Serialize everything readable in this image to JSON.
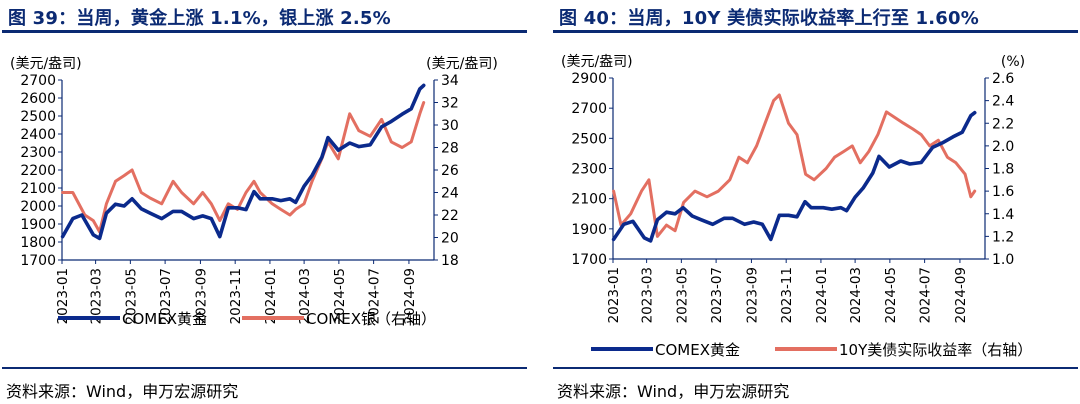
{
  "panels": [
    {
      "title": "图 39：当周，黄金上涨 1.1%，银上涨 2.5%",
      "source": "资料来源：Wind，申万宏源研究"
    },
    {
      "title": "图 40：当周，10Y 美债实际收益率上行至 1.60%",
      "source": "资料来源：Wind，申万宏源研究"
    }
  ],
  "chart_data": [
    {
      "type": "line",
      "left_unit": "(美元/盎司)",
      "right_unit": "(美元/盎司)",
      "x_ticks": [
        "2023-01",
        "2023-03",
        "2023-05",
        "2023-07",
        "2023-09",
        "2023-11",
        "2024-01",
        "2024-03",
        "2024-05",
        "2024-07",
        "2024-09"
      ],
      "ylim_left": [
        1700,
        2700
      ],
      "y_ticks_left": [
        1700,
        1800,
        1900,
        2000,
        2100,
        2200,
        2300,
        2400,
        2500,
        2600,
        2700
      ],
      "ylim_right": [
        18,
        34
      ],
      "y_ticks_right": [
        18,
        20,
        22,
        24,
        26,
        28,
        30,
        32,
        34
      ],
      "grid": false,
      "legend_position": "bottom",
      "series": [
        {
          "name": "COMEX黄金",
          "axis": "left",
          "color": "#0b2a8c",
          "x": [
            "2023-01-02",
            "2023-01-20",
            "2023-02-05",
            "2023-02-25",
            "2023-03-08",
            "2023-03-20",
            "2023-04-05",
            "2023-04-20",
            "2023-05-04",
            "2023-05-20",
            "2023-06-05",
            "2023-06-25",
            "2023-07-15",
            "2023-07-30",
            "2023-08-20",
            "2023-09-05",
            "2023-09-20",
            "2023-10-05",
            "2023-10-20",
            "2023-11-05",
            "2023-11-20",
            "2023-12-04",
            "2023-12-15",
            "2024-01-05",
            "2024-01-20",
            "2024-02-05",
            "2024-02-15",
            "2024-03-01",
            "2024-03-15",
            "2024-04-01",
            "2024-04-12",
            "2024-04-30",
            "2024-05-20",
            "2024-06-05",
            "2024-06-25",
            "2024-07-15",
            "2024-08-01",
            "2024-08-20",
            "2024-09-05",
            "2024-09-20",
            "2024-09-27"
          ],
          "values": [
            1830,
            1930,
            1950,
            1840,
            1820,
            1960,
            2010,
            2000,
            2040,
            1985,
            1960,
            1930,
            1970,
            1970,
            1930,
            1945,
            1930,
            1830,
            1990,
            1990,
            1980,
            2080,
            2040,
            2040,
            2030,
            2040,
            2020,
            2110,
            2170,
            2270,
            2380,
            2310,
            2350,
            2330,
            2340,
            2440,
            2470,
            2510,
            2540,
            2650,
            2670
          ]
        },
        {
          "name": "COMEX银（右轴）",
          "axis": "right",
          "color": "#e36f61",
          "x": [
            "2023-01-02",
            "2023-01-20",
            "2023-02-10",
            "2023-02-25",
            "2023-03-08",
            "2023-03-20",
            "2023-04-05",
            "2023-04-20",
            "2023-05-04",
            "2023-05-20",
            "2023-06-05",
            "2023-06-25",
            "2023-07-15",
            "2023-07-30",
            "2023-08-20",
            "2023-09-05",
            "2023-09-20",
            "2023-10-05",
            "2023-10-20",
            "2023-11-05",
            "2023-11-20",
            "2023-12-04",
            "2023-12-15",
            "2024-01-05",
            "2024-01-20",
            "2024-02-05",
            "2024-02-15",
            "2024-03-01",
            "2024-03-15",
            "2024-04-01",
            "2024-04-12",
            "2024-04-30",
            "2024-05-20",
            "2024-06-05",
            "2024-06-25",
            "2024-07-15",
            "2024-08-01",
            "2024-08-20",
            "2024-09-05",
            "2024-09-20",
            "2024-09-27"
          ],
          "values": [
            24,
            24,
            22,
            21.5,
            20.5,
            23,
            25,
            25.5,
            26,
            24,
            23.5,
            23,
            25,
            24,
            23,
            24,
            23,
            21.5,
            23,
            22.5,
            24,
            25,
            24,
            23,
            22.5,
            22,
            22.5,
            23,
            25,
            27,
            28.5,
            27,
            31,
            29.5,
            29,
            30.5,
            28.5,
            28,
            28.5,
            31,
            32
          ]
        }
      ]
    },
    {
      "type": "line",
      "left_unit": "(美元/盎司)",
      "right_unit": "(%)",
      "x_ticks": [
        "2023-01",
        "2023-03",
        "2023-05",
        "2023-07",
        "2023-09",
        "2023-11",
        "2024-01",
        "2024-03",
        "2024-05",
        "2024-07",
        "2024-09"
      ],
      "ylim_left": [
        1700,
        2900
      ],
      "y_ticks_left": [
        1700,
        1900,
        2100,
        2300,
        2500,
        2700,
        2900
      ],
      "ylim_right": [
        1.0,
        2.6
      ],
      "y_ticks_right": [
        1.0,
        1.2,
        1.4,
        1.6,
        1.8,
        2.0,
        2.2,
        2.4,
        2.6
      ],
      "grid": false,
      "legend_position": "bottom",
      "series": [
        {
          "name": "COMEX黄金",
          "axis": "left",
          "color": "#0b2a8c",
          "x": [
            "2023-01-02",
            "2023-01-20",
            "2023-02-05",
            "2023-02-25",
            "2023-03-08",
            "2023-03-20",
            "2023-04-05",
            "2023-04-20",
            "2023-05-04",
            "2023-05-20",
            "2023-06-05",
            "2023-06-25",
            "2023-07-15",
            "2023-07-30",
            "2023-08-20",
            "2023-09-05",
            "2023-09-20",
            "2023-10-05",
            "2023-10-20",
            "2023-11-05",
            "2023-11-20",
            "2023-12-04",
            "2023-12-15",
            "2024-01-05",
            "2024-01-20",
            "2024-02-05",
            "2024-02-15",
            "2024-03-01",
            "2024-03-15",
            "2024-04-01",
            "2024-04-12",
            "2024-04-30",
            "2024-05-20",
            "2024-06-05",
            "2024-06-25",
            "2024-07-15",
            "2024-08-01",
            "2024-08-20",
            "2024-09-05",
            "2024-09-20",
            "2024-09-27"
          ],
          "values": [
            1830,
            1930,
            1950,
            1840,
            1820,
            1960,
            2010,
            2000,
            2040,
            1985,
            1960,
            1930,
            1970,
            1970,
            1930,
            1945,
            1930,
            1830,
            1990,
            1990,
            1980,
            2080,
            2040,
            2040,
            2030,
            2040,
            2020,
            2110,
            2170,
            2270,
            2380,
            2310,
            2350,
            2330,
            2340,
            2440,
            2470,
            2510,
            2540,
            2650,
            2670
          ]
        },
        {
          "name": "10Y美债实际收益率（右轴）",
          "axis": "right",
          "color": "#e36f61",
          "x": [
            "2023-01-02",
            "2023-01-15",
            "2023-02-01",
            "2023-02-20",
            "2023-03-05",
            "2023-03-20",
            "2023-04-05",
            "2023-04-20",
            "2023-05-05",
            "2023-05-25",
            "2023-06-15",
            "2023-07-05",
            "2023-07-25",
            "2023-08-10",
            "2023-08-25",
            "2023-09-10",
            "2023-09-25",
            "2023-10-10",
            "2023-10-20",
            "2023-11-05",
            "2023-11-20",
            "2023-12-05",
            "2023-12-20",
            "2024-01-10",
            "2024-01-25",
            "2024-02-10",
            "2024-02-25",
            "2024-03-10",
            "2024-03-25",
            "2024-04-10",
            "2024-04-25",
            "2024-05-10",
            "2024-05-25",
            "2024-06-10",
            "2024-06-25",
            "2024-07-10",
            "2024-07-25",
            "2024-08-10",
            "2024-08-25",
            "2024-09-10",
            "2024-09-20",
            "2024-09-27"
          ],
          "values": [
            1.6,
            1.3,
            1.4,
            1.6,
            1.7,
            1.2,
            1.3,
            1.25,
            1.5,
            1.6,
            1.55,
            1.6,
            1.7,
            1.9,
            1.85,
            2.0,
            2.2,
            2.4,
            2.45,
            2.2,
            2.1,
            1.75,
            1.7,
            1.8,
            1.9,
            1.95,
            2.0,
            1.85,
            1.95,
            2.1,
            2.3,
            2.25,
            2.2,
            2.15,
            2.1,
            2.0,
            2.05,
            1.9,
            1.85,
            1.75,
            1.55,
            1.6
          ]
        }
      ]
    }
  ],
  "colors": {
    "title": "#0b2a73",
    "gold": "#0b2a8c",
    "second": "#e36f61"
  }
}
